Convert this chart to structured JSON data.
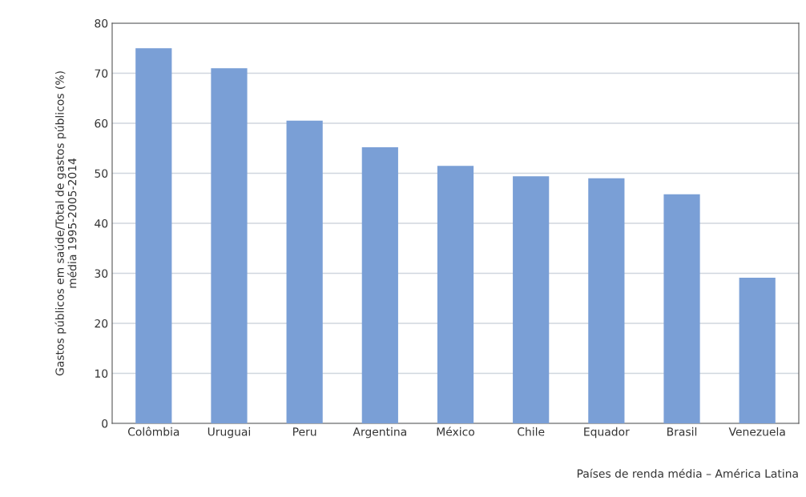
{
  "chart_data": {
    "type": "bar",
    "ylabel": "Gastos públicos em saúde/Total de gastos públicos (%)\nmédia 1995-2005-2014",
    "xlabel": "Países de renda média – América Latina",
    "categories": [
      "Colômbia",
      "Uruguai",
      "Peru",
      "Argentina",
      "México",
      "Chile",
      "Equador",
      "Brasil",
      "Venezuela"
    ],
    "values": [
      75,
      71,
      60.5,
      55.2,
      51.5,
      49.4,
      49,
      45.8,
      29.1
    ],
    "color": "#7a9fd6",
    "ylim": [
      0,
      80
    ],
    "yticks": [
      0,
      10,
      20,
      30,
      40,
      50,
      60,
      70,
      80
    ],
    "grid": "y"
  }
}
